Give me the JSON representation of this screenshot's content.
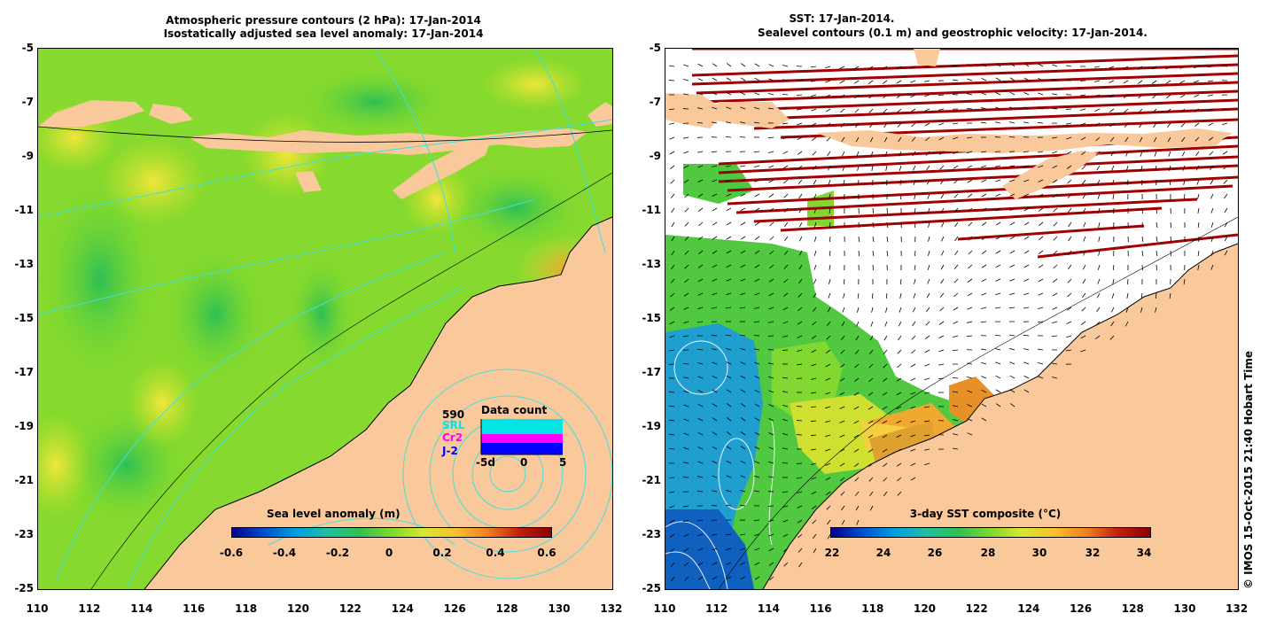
{
  "left_panel": {
    "title_line1": "Atmospheric pressure contours (2 hPa): 17-Jan-2014",
    "title_line2": "Isostatically adjusted sea level anomaly: 17-Jan-2014",
    "colorbar": {
      "title": "Sea level anomaly (m)",
      "ticks": [
        "-0.6",
        "-0.4",
        "-0.2",
        "0",
        "0.2",
        "0.4",
        "0.6"
      ],
      "range": [
        -0.6,
        0.6
      ]
    },
    "inset": {
      "title": "Data count",
      "count": "590",
      "legend": [
        {
          "label": "SRL",
          "color": "#00e5e5"
        },
        {
          "label": "Cr2",
          "color": "#ff00ff"
        },
        {
          "label": "J-2",
          "color": "#0000ff"
        }
      ],
      "x_ticks": [
        "-5d",
        "0",
        "5"
      ]
    }
  },
  "right_panel": {
    "title_line1": "SST: 17-Jan-2014.",
    "title_line2": "Sealevel contours (0.1 m) and geostrophic velocity: 17-Jan-2014.",
    "colorbar": {
      "title": "3-day SST composite (°C)",
      "ticks": [
        "22",
        "24",
        "26",
        "28",
        "30",
        "32",
        "34"
      ],
      "range": [
        22,
        34
      ]
    }
  },
  "axes": {
    "y_ticks": [
      "-5",
      "-7",
      "-9",
      "-11",
      "-13",
      "-15",
      "-17",
      "-19",
      "-21",
      "-23",
      "-25"
    ],
    "x_ticks": [
      "110",
      "112",
      "114",
      "116",
      "118",
      "120",
      "122",
      "124",
      "126",
      "128",
      "130",
      "132"
    ]
  },
  "copyright": "© IMOS 15-Oct-2015 21:40 Hobart Time",
  "colors": {
    "land": "#f9c89b",
    "ocean_green": "#7fdc2a",
    "contour_cyan": "#40e0e0",
    "sst_red": "#a00000"
  }
}
